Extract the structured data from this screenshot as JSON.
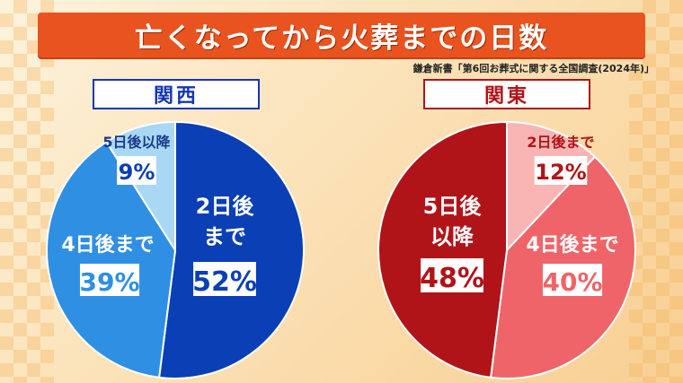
{
  "title": "亡くなってから火葬までの日数",
  "source": "鎌倉新書「第6回お葬式に関する全国調査(2024年)」",
  "chart_data": [
    {
      "type": "pie",
      "title": "関西",
      "slices": [
        {
          "label": "2日後まで",
          "value": 52,
          "value_label": "52%",
          "color": "#0a3fb5",
          "text_color": "#ffffff"
        },
        {
          "label": "4日後まで",
          "value": 39,
          "value_label": "39%",
          "color": "#2f8fe3",
          "text_color": "#ffffff"
        },
        {
          "label": "5日後以降",
          "value": 9,
          "value_label": "9%",
          "color": "#a9d8f4",
          "text_color": "#1a3c8a"
        }
      ]
    },
    {
      "type": "pie",
      "title": "関東",
      "slices": [
        {
          "label": "2日後まで",
          "value": 12,
          "value_label": "12%",
          "color": "#f9b4b4",
          "text_color": "#b01419"
        },
        {
          "label": "4日後まで",
          "value": 40,
          "value_label": "40%",
          "color": "#ef6468",
          "text_color": "#ffffff"
        },
        {
          "label": "5日後以降",
          "value": 48,
          "value_label": "48%",
          "color": "#b01419",
          "text_color": "#ffffff"
        }
      ]
    }
  ]
}
